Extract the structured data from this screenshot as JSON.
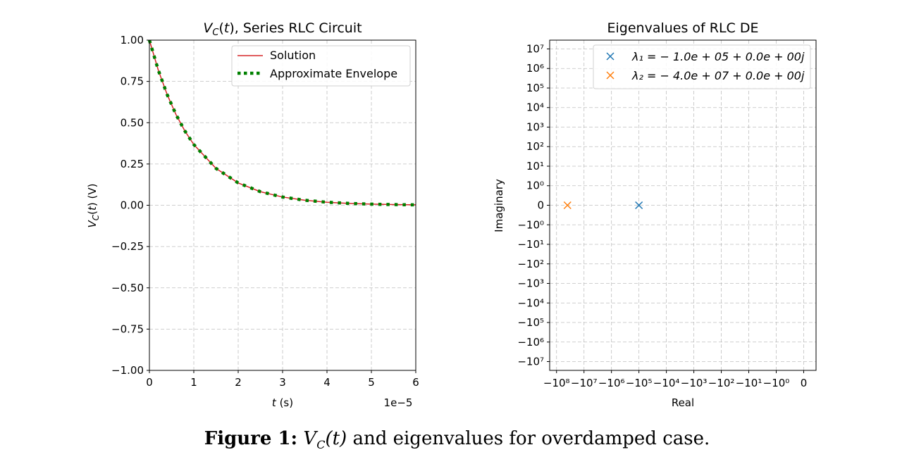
{
  "chart_data": [
    {
      "type": "line",
      "title": "V_C(t), Series RLC Circuit",
      "xlabel": "t (s)",
      "ylabel": "V_C(t) (V)",
      "x_offset_text": "1e−5",
      "xlim": [
        0,
        6e-05
      ],
      "ylim": [
        -1.0,
        1.0
      ],
      "xticks": [
        "0",
        "1",
        "2",
        "3",
        "4",
        "5",
        "6"
      ],
      "yticks": [
        "−1.00",
        "−0.75",
        "−0.50",
        "−0.25",
        "0.00",
        "0.25",
        "0.50",
        "0.75",
        "1.00"
      ],
      "grid": true,
      "legend_position": "upper right",
      "series": [
        {
          "name": "Solution",
          "style": "solid",
          "color": "#d62728",
          "x": [
            0,
            2e-06,
            4e-06,
            6e-06,
            8e-06,
            1e-05,
            1.5e-05,
            2e-05,
            2.5e-05,
            3e-05,
            3.5e-05,
            4e-05,
            4.5e-05,
            5e-05,
            5.5e-05,
            6e-05
          ],
          "y": [
            1.0,
            0.8187,
            0.6703,
            0.5488,
            0.4493,
            0.3679,
            0.2231,
            0.1353,
            0.0821,
            0.0498,
            0.0302,
            0.0183,
            0.0111,
            0.0067,
            0.0041,
            0.0025
          ]
        },
        {
          "name": "Approximate Envelope",
          "style": "dotted",
          "color": "#008000",
          "x": [
            0,
            2e-06,
            4e-06,
            6e-06,
            8e-06,
            1e-05,
            1.5e-05,
            2e-05,
            2.5e-05,
            3e-05,
            3.5e-05,
            4e-05,
            4.5e-05,
            5e-05,
            5.5e-05,
            6e-05
          ],
          "y": [
            1.0,
            0.8187,
            0.6703,
            0.5488,
            0.4493,
            0.3679,
            0.2231,
            0.1353,
            0.0821,
            0.0498,
            0.0302,
            0.0183,
            0.0111,
            0.0067,
            0.0041,
            0.0025
          ]
        }
      ]
    },
    {
      "type": "scatter",
      "title": "Eigenvalues of RLC DE",
      "xlabel": "Real",
      "ylabel": "Imaginary",
      "xscale": "symlog",
      "yscale": "symlog",
      "xticks": [
        "−10⁸",
        "−10⁷",
        "−10⁶",
        "−10⁵",
        "−10⁴",
        "−10³",
        "−10²",
        "−10¹",
        "−10⁰",
        "0"
      ],
      "yticks": [
        "10⁷",
        "10⁶",
        "10⁵",
        "10⁴",
        "10³",
        "10²",
        "10¹",
        "10⁰",
        "0",
        "−10⁰",
        "−10¹",
        "−10²",
        "−10³",
        "−10⁴",
        "−10⁵",
        "−10⁶",
        "−10⁷"
      ],
      "grid": true,
      "legend_position": "upper right",
      "series": [
        {
          "name": "λ₁ = − 1.0e + 05 + 0.0e + 00j",
          "color": "#1f77b4",
          "marker": "x",
          "x": [
            -100000
          ],
          "y": [
            0
          ]
        },
        {
          "name": "λ₂ = − 4.0e + 07 + 0.0e + 00j",
          "color": "#ff7f0e",
          "marker": "x",
          "x": [
            -40000000
          ],
          "y": [
            0
          ]
        }
      ]
    }
  ],
  "caption": {
    "label": "Figure 1:",
    "math": "V_C(t)",
    "text": " and eigenvalues for overdamped case."
  }
}
